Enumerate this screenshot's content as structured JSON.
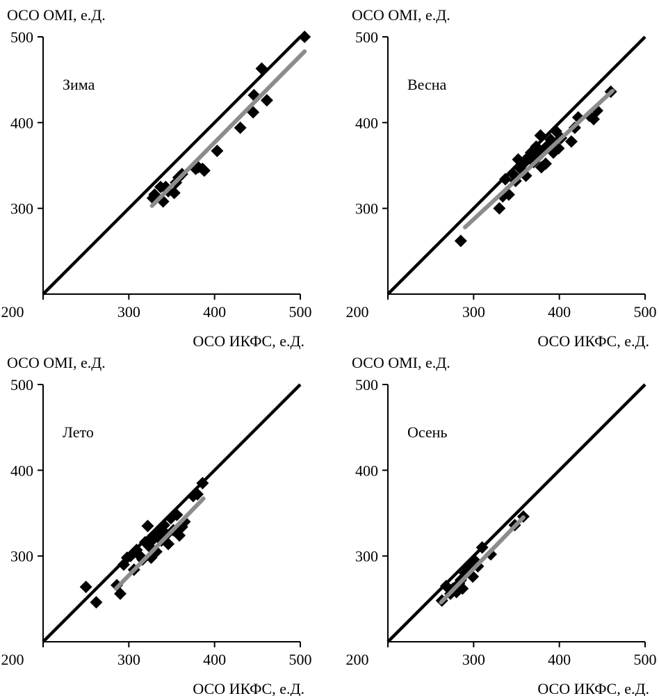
{
  "colors": {
    "identity_line": "#000000",
    "regression_line": "#8c8c8c",
    "points": "#000000",
    "axes": "#000000"
  },
  "chart_data": [
    {
      "type": "scatter",
      "title": "Зима",
      "xlabel": "ОСО ИКФС, е.Д.",
      "ylabel": "ОСО OMI, е.Д.",
      "xlim": [
        200,
        500
      ],
      "ylim": [
        200,
        500
      ],
      "xticks": [
        "200",
        "300",
        "400",
        "500"
      ],
      "yticks": [
        "300",
        "400",
        "500"
      ],
      "points": [
        [
          328,
          312
        ],
        [
          330,
          316
        ],
        [
          337,
          325
        ],
        [
          340,
          308
        ],
        [
          343,
          325
        ],
        [
          346,
          320
        ],
        [
          353,
          318
        ],
        [
          355,
          330
        ],
        [
          358,
          336
        ],
        [
          362,
          340
        ],
        [
          378,
          346
        ],
        [
          381,
          348
        ],
        [
          386,
          346
        ],
        [
          388,
          344
        ],
        [
          403,
          367
        ],
        [
          430,
          394
        ],
        [
          445,
          412
        ],
        [
          446,
          432
        ],
        [
          455,
          463
        ],
        [
          461,
          426
        ],
        [
          505,
          500
        ]
      ],
      "regression": [
        [
          327,
          303
        ],
        [
          505,
          483
        ]
      ]
    },
    {
      "type": "scatter",
      "title": "Весна",
      "xlabel": "ОСО ИКФС, е.Д.",
      "ylabel": "ОСО OMI, е.Д.",
      "xlim": [
        200,
        500
      ],
      "ylim": [
        200,
        500
      ],
      "xticks": [
        "200",
        "300",
        "400",
        "500"
      ],
      "yticks": [
        "300",
        "400",
        "500"
      ],
      "points": [
        [
          285,
          262
        ],
        [
          330,
          300
        ],
        [
          334,
          314
        ],
        [
          337,
          334
        ],
        [
          341,
          316
        ],
        [
          346,
          340
        ],
        [
          349,
          332
        ],
        [
          352,
          357
        ],
        [
          355,
          346
        ],
        [
          358,
          352
        ],
        [
          361,
          338
        ],
        [
          364,
          360
        ],
        [
          367,
          365
        ],
        [
          370,
          354
        ],
        [
          373,
          372
        ],
        [
          375,
          360
        ],
        [
          378,
          385
        ],
        [
          379,
          348
        ],
        [
          381,
          368
        ],
        [
          384,
          352
        ],
        [
          387,
          374
        ],
        [
          390,
          380
        ],
        [
          393,
          365
        ],
        [
          396,
          390
        ],
        [
          399,
          370
        ],
        [
          402,
          382
        ],
        [
          414,
          378
        ],
        [
          418,
          394
        ],
        [
          422,
          406
        ],
        [
          435,
          408
        ],
        [
          440,
          404
        ],
        [
          444,
          414
        ],
        [
          460,
          436
        ]
      ],
      "regression": [
        [
          290,
          278
        ],
        [
          462,
          437
        ]
      ]
    },
    {
      "type": "scatter",
      "title": "Лето",
      "xlabel": "ОСО ИКФС, е.Д.",
      "ylabel": "ОСО OMI, е.Д.",
      "xlim": [
        200,
        500
      ],
      "ylim": [
        200,
        500
      ],
      "xticks": [
        "200",
        "300",
        "400",
        "500"
      ],
      "yticks": [
        "300",
        "400",
        "500"
      ],
      "points": [
        [
          250,
          264
        ],
        [
          262,
          246
        ],
        [
          286,
          266
        ],
        [
          290,
          256
        ],
        [
          294,
          290
        ],
        [
          298,
          298
        ],
        [
          302,
          300
        ],
        [
          306,
          284
        ],
        [
          309,
          307
        ],
        [
          313,
          300
        ],
        [
          316,
          296
        ],
        [
          319,
          316
        ],
        [
          322,
          335
        ],
        [
          325,
          310
        ],
        [
          326,
          298
        ],
        [
          329,
          320
        ],
        [
          332,
          305
        ],
        [
          335,
          328
        ],
        [
          338,
          318
        ],
        [
          341,
          336
        ],
        [
          344,
          325
        ],
        [
          346,
          314
        ],
        [
          349,
          344
        ],
        [
          352,
          330
        ],
        [
          356,
          348
        ],
        [
          359,
          324
        ],
        [
          362,
          334
        ],
        [
          365,
          340
        ],
        [
          375,
          370
        ],
        [
          380,
          372
        ],
        [
          386,
          385
        ]
      ],
      "regression": [
        [
          285,
          262
        ],
        [
          387,
          367
        ]
      ]
    },
    {
      "type": "scatter",
      "title": "Осень",
      "xlabel": "ОСО ИКФС, е.Д.",
      "ylabel": "ОСО OMI, е.Д.",
      "xlim": [
        200,
        500
      ],
      "ylim": [
        200,
        500
      ],
      "xticks": [
        "200",
        "300",
        "400",
        "500"
      ],
      "yticks": [
        "300",
        "400",
        "500"
      ],
      "points": [
        [
          263,
          248
        ],
        [
          268,
          265
        ],
        [
          273,
          256
        ],
        [
          276,
          262
        ],
        [
          280,
          258
        ],
        [
          283,
          268
        ],
        [
          285,
          272
        ],
        [
          287,
          262
        ],
        [
          290,
          280
        ],
        [
          293,
          285
        ],
        [
          296,
          290
        ],
        [
          299,
          276
        ],
        [
          302,
          294
        ],
        [
          305,
          288
        ],
        [
          310,
          310
        ],
        [
          320,
          302
        ],
        [
          348,
          336
        ],
        [
          358,
          346
        ]
      ],
      "regression": [
        [
          262,
          246
        ],
        [
          358,
          345
        ]
      ]
    }
  ]
}
